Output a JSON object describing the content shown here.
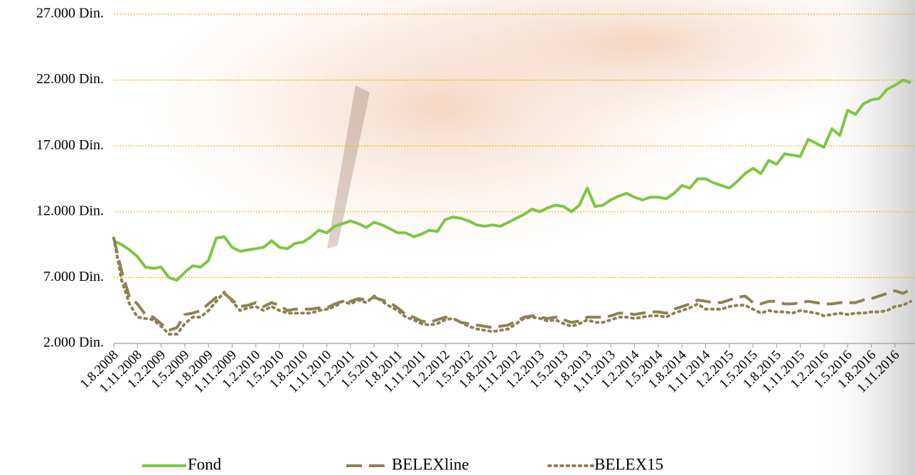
{
  "chart_data": {
    "type": "line",
    "categories": [
      "1.8.2008",
      null,
      null,
      "1.11.2008",
      null,
      null,
      "1.2.2009",
      null,
      null,
      "1.5.2009",
      null,
      null,
      "1.8.2009",
      null,
      null,
      "1.11.2009",
      null,
      null,
      "1.2.2010",
      null,
      null,
      "1.5.2010",
      null,
      null,
      "1.8.2010",
      null,
      null,
      "1.11.2010",
      null,
      null,
      "1.2.2011",
      null,
      null,
      "1.5.2011",
      null,
      null,
      "1.8.2011",
      null,
      null,
      "1.11.2011",
      null,
      null,
      "1.2.2012",
      null,
      null,
      "1.5.2012",
      null,
      null,
      "1.8.2012",
      null,
      null,
      "1.11.2012",
      null,
      null,
      "1.2.2013",
      null,
      null,
      "1.5.2013",
      null,
      null,
      "1.8.2013",
      null,
      null,
      "1.11.2013",
      null,
      null,
      "1.2.2014",
      null,
      null,
      "1.5.2014",
      null,
      null,
      "1.8.2014",
      null,
      null,
      "1.11.2014",
      null,
      null,
      "1.2.2015",
      null,
      null,
      "1.5.2015",
      null,
      null,
      "1.8.2015",
      null,
      null,
      "1.11.2015",
      null,
      null,
      "1.2.2016",
      null,
      null,
      "1.5.2016",
      null,
      null,
      "1.8.2016",
      null,
      null,
      "1.11.2016",
      null,
      null
    ],
    "series": [
      {
        "name": "Fond",
        "color": "#7ec544",
        "dash": "solid",
        "values": [
          9800,
          9500,
          9100,
          8600,
          7800,
          7700,
          7800,
          7000,
          6800,
          7400,
          7900,
          7800,
          8300,
          10000,
          10100,
          9300,
          9000,
          9100,
          9200,
          9300,
          9800,
          9300,
          9200,
          9600,
          9700,
          10100,
          10600,
          10400,
          10900,
          11100,
          11300,
          11100,
          10800,
          11200,
          11000,
          10700,
          10400,
          10400,
          10100,
          10300,
          10600,
          10500,
          11400,
          11600,
          11500,
          11300,
          11000,
          10900,
          11000,
          10900,
          11200,
          11500,
          11800,
          12200,
          12000,
          12300,
          12500,
          12400,
          12000,
          12500,
          13800,
          12400,
          12500,
          12900,
          13200,
          13400,
          13100,
          12900,
          13100,
          13100,
          13000,
          13400,
          14000,
          13800,
          14500,
          14500,
          14200,
          14000,
          13800,
          14300,
          14900,
          15300,
          14900,
          15900,
          15600,
          16400,
          16300,
          16200,
          17500,
          17200,
          16900,
          18300,
          17800,
          19700,
          19400,
          20200,
          20500,
          20600,
          21300,
          21600,
          22000,
          21800
        ]
      },
      {
        "name": "BELEXline",
        "color": "#8e8155",
        "dash": "dashed",
        "values": [
          10000,
          7500,
          5500,
          5000,
          4200,
          4000,
          3500,
          3000,
          3200,
          4200,
          4300,
          4500,
          5000,
          5500,
          5800,
          5300,
          4800,
          4900,
          5100,
          4800,
          5100,
          4900,
          4500,
          4600,
          4600,
          4600,
          4700,
          4700,
          5000,
          5200,
          5200,
          5400,
          5300,
          5500,
          5300,
          5100,
          4700,
          4200,
          4000,
          3700,
          3600,
          3800,
          4000,
          3900,
          3600,
          3500,
          3400,
          3300,
          3200,
          3300,
          3400,
          3700,
          4000,
          4100,
          4000,
          3900,
          4000,
          3800,
          3600,
          3700,
          4000,
          4000,
          4000,
          4100,
          4300,
          4300,
          4200,
          4300,
          4400,
          4400,
          4300,
          4600,
          4800,
          5000,
          5300,
          5200,
          5100,
          5100,
          5300,
          5500,
          5600,
          5100,
          5000,
          5200,
          5200,
          5000,
          5000,
          5100,
          5200,
          5100,
          5000,
          5000,
          5100,
          5100,
          5100,
          5300,
          5400,
          5600,
          5800,
          6000,
          5800,
          6100
        ]
      },
      {
        "name": "BELEX15",
        "color": "#8e8155",
        "dash": "dotted",
        "values": [
          10000,
          6800,
          5000,
          4000,
          3900,
          3800,
          3300,
          2700,
          2700,
          3500,
          4000,
          4000,
          4500,
          5200,
          5900,
          5200,
          4500,
          4700,
          4800,
          4500,
          4800,
          4500,
          4300,
          4300,
          4300,
          4300,
          4500,
          4600,
          4800,
          5200,
          5000,
          5300,
          5100,
          5600,
          5200,
          4800,
          4500,
          4000,
          3800,
          3500,
          3400,
          3500,
          3800,
          3900,
          3600,
          3300,
          3100,
          3000,
          2900,
          3000,
          3100,
          3500,
          3900,
          4000,
          3900,
          3700,
          3800,
          3500,
          3300,
          3500,
          3800,
          3600,
          3600,
          3800,
          4000,
          4000,
          3900,
          4000,
          4100,
          4100,
          4000,
          4300,
          4500,
          4700,
          5000,
          4600,
          4600,
          4600,
          4800,
          4900,
          4900,
          4600,
          4300,
          4500,
          4400,
          4400,
          4300,
          4500,
          4400,
          4300,
          4100,
          4200,
          4300,
          4200,
          4300,
          4300,
          4400,
          4400,
          4500,
          4800,
          4900,
          5200
        ]
      }
    ],
    "ylim": [
      2000,
      27000
    ],
    "yticks": [
      {
        "value": 2000,
        "label": "2.000 Din."
      },
      {
        "value": 7000,
        "label": "7.000 Din."
      },
      {
        "value": 12000,
        "label": "12.000 Din."
      },
      {
        "value": 17000,
        "label": "17.000 Din."
      },
      {
        "value": 22000,
        "label": "22.000 Din."
      },
      {
        "value": 27000,
        "label": "27.000 Din."
      }
    ],
    "grid": true,
    "legend": "bottom"
  }
}
